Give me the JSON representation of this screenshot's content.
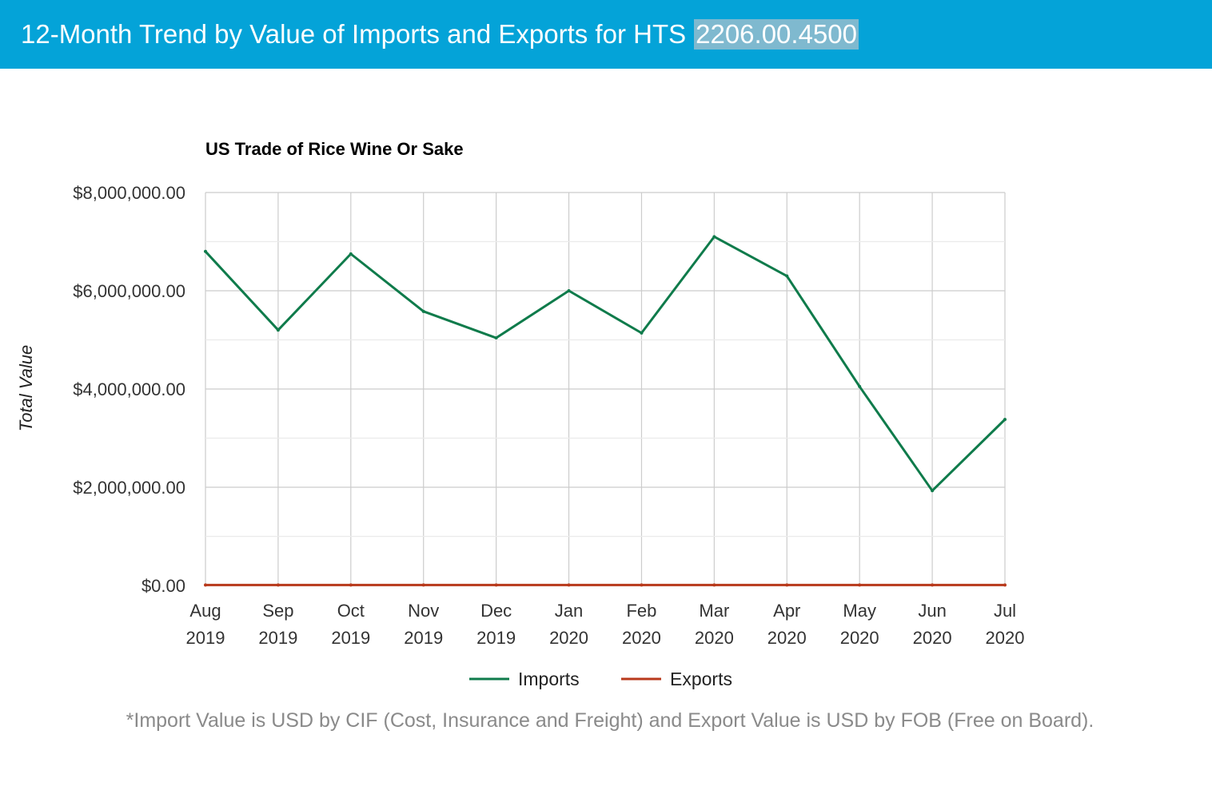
{
  "header": {
    "title": "12-Month Trend by Value of Imports and Exports for HTS",
    "hts_code": "2206.00.4500"
  },
  "footnote": "*Import Value is USD by CIF (Cost, Insurance and Freight) and Export Value is USD by FOB (Free on Board).",
  "colors": {
    "header_bg": "#04a3d8",
    "imports": "#0f7b4b",
    "exports": "#b8391b"
  },
  "chart_data": {
    "type": "line",
    "title": "US Trade of Rice Wine Or Sake",
    "ylabel": "Total Value",
    "xlabel": "",
    "ylim": [
      0,
      8000000
    ],
    "y_ticks": [
      0,
      2000000,
      4000000,
      6000000,
      8000000
    ],
    "y_tick_labels": [
      "$0.00",
      "$2,000,000.00",
      "$4,000,000.00",
      "$6,000,000.00",
      "$8,000,000.00"
    ],
    "grid": true,
    "legend": "bottom",
    "categories": [
      [
        "Aug",
        "2019"
      ],
      [
        "Sep",
        "2019"
      ],
      [
        "Oct",
        "2019"
      ],
      [
        "Nov",
        "2019"
      ],
      [
        "Dec",
        "2019"
      ],
      [
        "Jan",
        "2020"
      ],
      [
        "Feb",
        "2020"
      ],
      [
        "Mar",
        "2020"
      ],
      [
        "Apr",
        "2020"
      ],
      [
        "May",
        "2020"
      ],
      [
        "Jun",
        "2020"
      ],
      [
        "Jul",
        "2020"
      ]
    ],
    "series": [
      {
        "name": "Imports",
        "color": "#0f7b4b",
        "values": [
          6800000,
          5200000,
          6750000,
          5580000,
          5040000,
          6000000,
          5140000,
          7100000,
          6300000,
          4050000,
          1930000,
          3380000
        ]
      },
      {
        "name": "Exports",
        "color": "#b8391b",
        "values": [
          10000,
          10000,
          10000,
          10000,
          10000,
          10000,
          10000,
          10000,
          10000,
          10000,
          10000,
          10000
        ]
      }
    ]
  }
}
